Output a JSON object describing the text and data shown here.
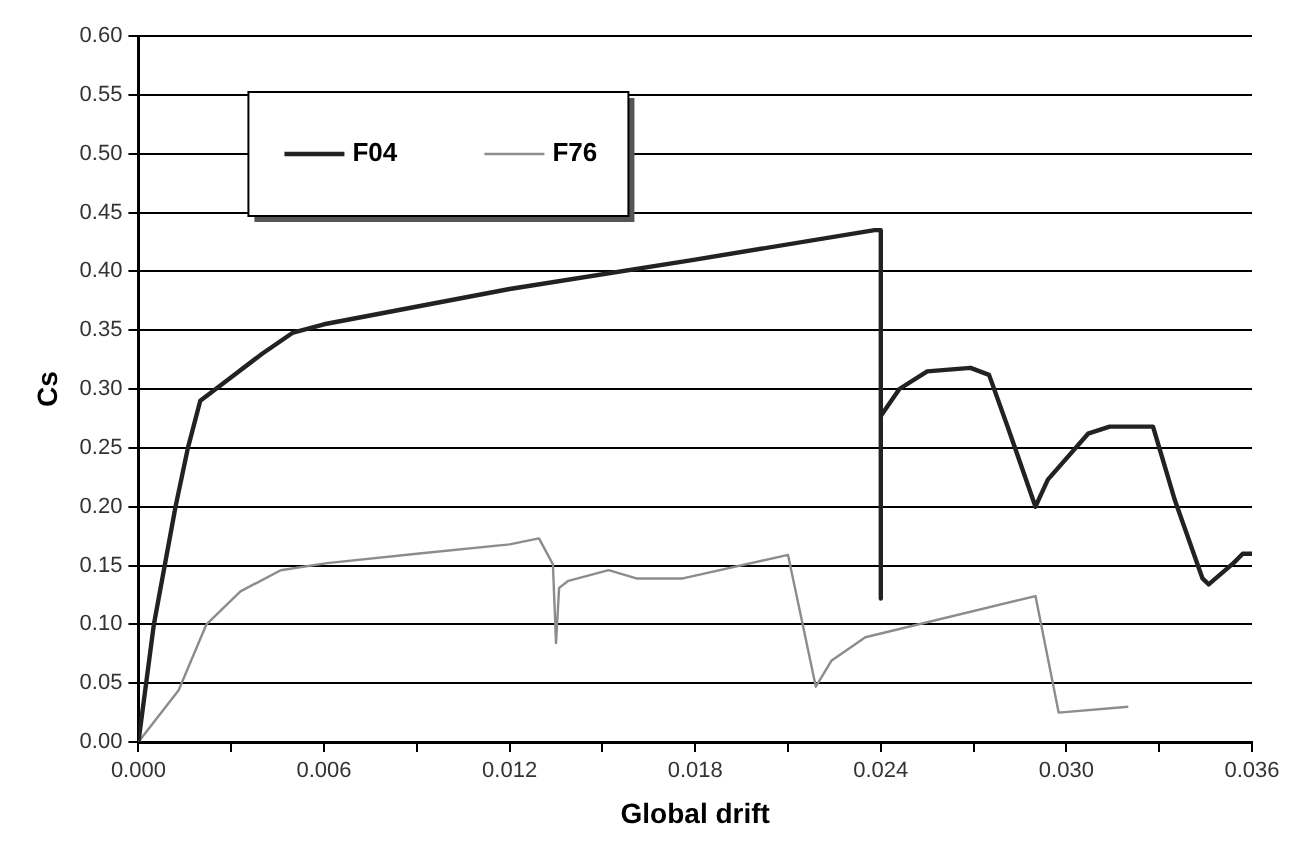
{
  "chart_data": {
    "type": "line",
    "xlabel": "Global drift",
    "ylabel": "Cs",
    "xlim": [
      0,
      0.036
    ],
    "xticks": [
      {
        "value": 0,
        "label": "0.000"
      },
      {
        "value": 0.003,
        "label": null
      },
      {
        "value": 0.006,
        "label": "0.006"
      },
      {
        "value": 0.009,
        "label": null
      },
      {
        "value": 0.012,
        "label": "0.012"
      },
      {
        "value": 0.015,
        "label": null
      },
      {
        "value": 0.018,
        "label": "0.018"
      },
      {
        "value": 0.021,
        "label": null
      },
      {
        "value": 0.024,
        "label": "0.024"
      },
      {
        "value": 0.027,
        "label": null
      },
      {
        "value": 0.03,
        "label": "0.030"
      },
      {
        "value": 0.033,
        "label": null
      },
      {
        "value": 0.036,
        "label": "0.036"
      }
    ],
    "ylim": [
      0,
      0.6
    ],
    "yticks": [
      {
        "value": 0,
        "label": "0.00"
      },
      {
        "value": 0.05,
        "label": "0.05"
      },
      {
        "value": 0.1,
        "label": "0.10"
      },
      {
        "value": 0.15,
        "label": "0.15"
      },
      {
        "value": 0.2,
        "label": "0.20"
      },
      {
        "value": 0.25,
        "label": "0.25"
      },
      {
        "value": 0.3,
        "label": "0.30"
      },
      {
        "value": 0.35,
        "label": "0.35"
      },
      {
        "value": 0.4,
        "label": "0.40"
      },
      {
        "value": 0.45,
        "label": "0.45"
      },
      {
        "value": 0.5,
        "label": "0.50"
      },
      {
        "value": 0.55,
        "label": "0.55"
      },
      {
        "value": 0.6,
        "label": "0.60"
      }
    ],
    "grid": "y",
    "legend": "top left",
    "marker": "none",
    "line_style": "solid",
    "series": [
      {
        "name": "F04",
        "color": "#222222",
        "x": [
          0,
          0.0005,
          0.0012,
          0.0016,
          0.002,
          0.003,
          0.004,
          0.005,
          0.006,
          0.012,
          0.018,
          0.0238,
          0.024,
          0.024,
          0.024,
          0.0246,
          0.0255,
          0.0269,
          0.0275,
          0.0281,
          0.029,
          0.0294,
          0.0307,
          0.0314,
          0.0328,
          0.0335,
          0.0344,
          0.0346,
          0.0354,
          0.0357,
          0.036
        ],
        "values": [
          0,
          0.1,
          0.2,
          0.25,
          0.29,
          0.31,
          0.33,
          0.348,
          0.355,
          0.385,
          0.41,
          0.435,
          0.435,
          0.122,
          0.277,
          0.3,
          0.315,
          0.318,
          0.312,
          0.268,
          0.2,
          0.223,
          0.262,
          0.268,
          0.268,
          0.206,
          0.139,
          0.134,
          0.152,
          0.16,
          0.16
        ]
      },
      {
        "name": "F76",
        "color": "#8c8c8c",
        "x": [
          0,
          0.0013,
          0.0022,
          0.0033,
          0.0046,
          0.0061,
          0.009,
          0.012,
          0.01295,
          0.0134,
          0.0135,
          0.0136,
          0.0139,
          0.0152,
          0.0161,
          0.0176,
          0.021,
          0.0219,
          0.0224,
          0.0235,
          0.029,
          0.02975,
          0.032
        ],
        "values": [
          0,
          0.044,
          0.1,
          0.128,
          0.146,
          0.152,
          0.16,
          0.168,
          0.173,
          0.151,
          0.084,
          0.131,
          0.137,
          0.146,
          0.139,
          0.139,
          0.159,
          0.047,
          0.069,
          0.089,
          0.124,
          0.025,
          0.03
        ]
      }
    ]
  }
}
